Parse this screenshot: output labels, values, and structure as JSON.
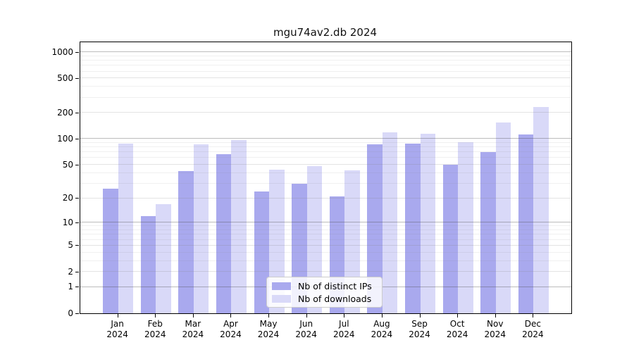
{
  "title": "mgu74av2.db 2024",
  "chart_data": {
    "type": "bar",
    "title": "mgu74av2.db 2024",
    "xlabel": "",
    "ylabel": "",
    "yscale": "log1p",
    "ylim": [
      0,
      1317
    ],
    "grid": true,
    "legend_position": "lower center",
    "categories": [
      "Jan 2024",
      "Feb 2024",
      "Mar 2024",
      "Apr 2024",
      "May 2024",
      "Jun 2024",
      "Jul 2024",
      "Aug 2024",
      "Sep 2024",
      "Oct 2024",
      "Nov 2024",
      "Dec 2024"
    ],
    "yticks": [
      0,
      1,
      2,
      5,
      10,
      20,
      50,
      100,
      200,
      500,
      1000
    ],
    "minor_gridlines": [
      3,
      4,
      6,
      7,
      8,
      9,
      30,
      40,
      60,
      70,
      80,
      90,
      300,
      400,
      600,
      700,
      800,
      900
    ],
    "series": [
      {
        "name": "Nb of distinct IPs",
        "color": "#a9a9ee",
        "values": [
          26,
          12,
          42,
          66,
          24,
          30,
          21,
          87,
          89,
          50,
          70,
          112
        ]
      },
      {
        "name": "Nb of downloads",
        "color": "#d9d9f8",
        "values": [
          89,
          17,
          86,
          97,
          44,
          48,
          43,
          120,
          115,
          91,
          155,
          235
        ]
      }
    ]
  }
}
